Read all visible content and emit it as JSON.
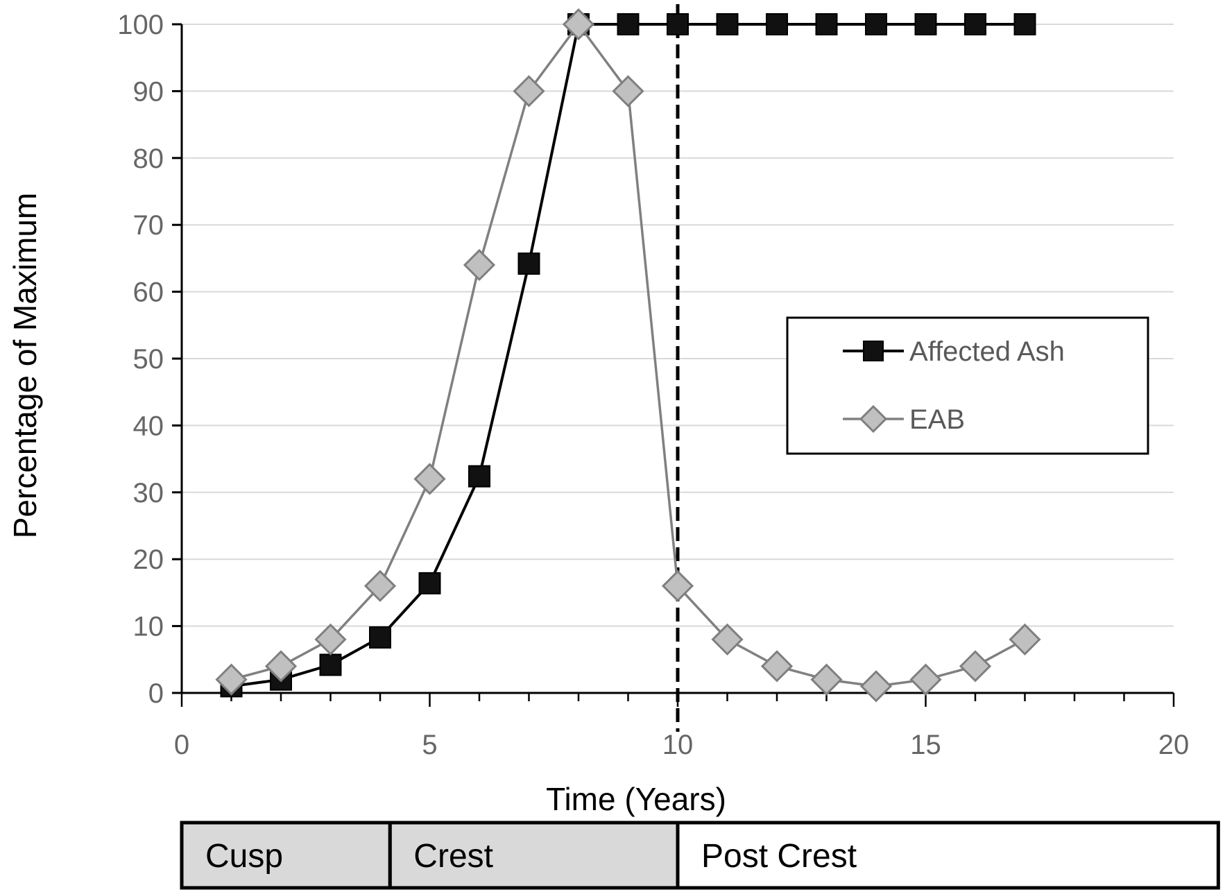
{
  "chart_data": {
    "type": "line",
    "title": "",
    "xlabel": "Time (Years)",
    "ylabel": "Percentage of Maximum",
    "xlim": [
      0,
      20
    ],
    "ylim": [
      0,
      100
    ],
    "x_ticks": [
      0,
      5,
      10,
      15,
      20
    ],
    "y_ticks": [
      0,
      10,
      20,
      30,
      40,
      50,
      60,
      70,
      80,
      90,
      100
    ],
    "grid": "horizontal",
    "legend_position": "center-right",
    "reference_line": {
      "x": 10,
      "style": "dashed"
    },
    "series": [
      {
        "name": "Affected Ash",
        "marker": "square",
        "line_color": "#000000",
        "marker_fill": "#111111",
        "x": [
          1,
          2,
          3,
          4,
          5,
          6,
          7,
          8,
          9,
          10,
          11,
          12,
          13,
          14,
          15,
          16,
          17
        ],
        "values": [
          1,
          2,
          4.2,
          8.3,
          16.4,
          32.4,
          64.2,
          100,
          100,
          100,
          100,
          100,
          100,
          100,
          100,
          100,
          100
        ]
      },
      {
        "name": "EAB",
        "marker": "diamond",
        "line_color": "#808080",
        "marker_fill": "#c0c0c0",
        "x": [
          1,
          2,
          3,
          4,
          5,
          6,
          7,
          8,
          9,
          10,
          11,
          12,
          13,
          14,
          15,
          16,
          17
        ],
        "values": [
          2,
          4,
          8,
          16,
          32,
          64,
          90,
          100,
          90,
          16,
          8,
          4,
          2,
          1,
          2,
          4,
          8
        ]
      }
    ],
    "phases": [
      {
        "label": "Cusp",
        "start": 0,
        "end": 4.2,
        "fill": "#d9d9d9"
      },
      {
        "label": "Crest",
        "start": 4.2,
        "end": 10,
        "fill": "#d9d9d9"
      },
      {
        "label": "Post Crest",
        "start": 10,
        "end": 20.9,
        "fill": "#ffffff"
      }
    ]
  }
}
